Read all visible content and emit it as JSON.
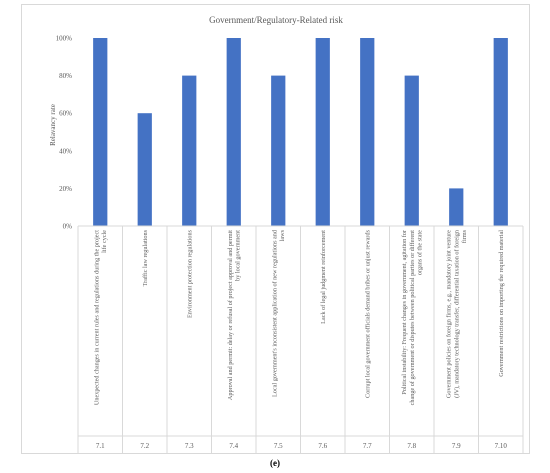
{
  "chart_data": {
    "type": "bar",
    "title": "Government/Regulatory-Related risk",
    "ylabel": "Relavancy rate",
    "xlabel": "",
    "ylim": [
      0,
      100
    ],
    "y_ticks": [
      "0%",
      "20%",
      "40%",
      "60%",
      "80%",
      "100%"
    ],
    "categories": [
      "7.1",
      "7.2",
      "7.3",
      "7.4",
      "7.5",
      "7.6",
      "7.7",
      "7.8",
      "7.9",
      "7.10"
    ],
    "descriptions": [
      "Unexpected changes in current rules and regulations during the project life cycle",
      "Traffic law regulations",
      "Environment protection regulations",
      "Approval and permit: delay or refusal of project approval and permit by local government",
      "Local government's inconsistent application of new regulations and laws",
      "Lack of legal judgment reinforcement",
      "Corrupt local government officials demand bribes or unjust rewards",
      "Political instability: Frequent changes in government, agitation for change of government or disputes between political parties or different organs of the state",
      "Government policies on foreign firms, e.g., mandatory joint venture (JV), mandatory technology transfer, differential taxation of foreign firms",
      "Government restrictions on importing the required material"
    ],
    "values": [
      100,
      60,
      80,
      100,
      80,
      100,
      100,
      80,
      20,
      100
    ],
    "bar_color": "#4472c4",
    "grid": false
  },
  "figure": {
    "panel_label": "(e)"
  }
}
